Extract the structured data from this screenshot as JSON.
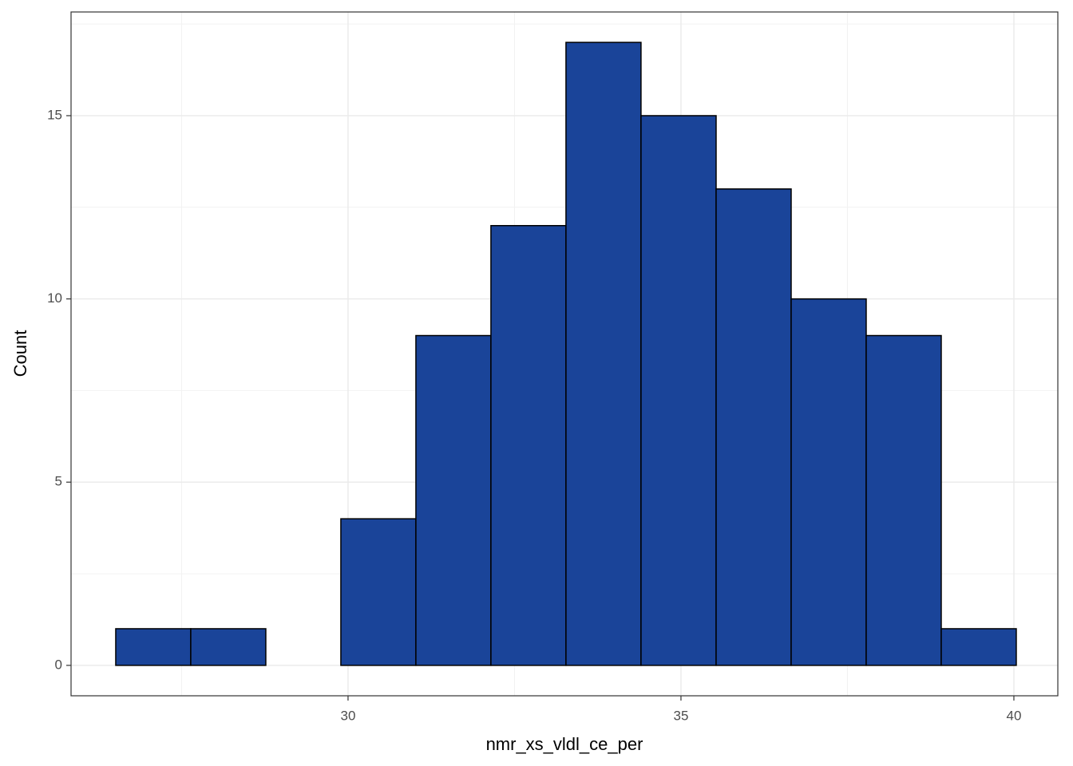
{
  "chart_data": {
    "type": "histogram",
    "x_label": "nmr_xs_vldl_ce_per",
    "y_label": "Count",
    "bins": [
      26.511,
      27.638,
      28.765,
      29.892,
      31.019,
      32.146,
      33.273,
      34.4,
      35.528,
      36.655,
      37.782,
      38.909,
      40.036
    ],
    "values": [
      1,
      1,
      0,
      4,
      9,
      12,
      17,
      15,
      13,
      10,
      9,
      1
    ],
    "color": "#1a4499",
    "xlim": [
      25.84,
      40.66
    ],
    "xticks": [
      30,
      35,
      40
    ],
    "ylim": [
      -0.83,
      17.83
    ],
    "yticks": [
      0,
      5,
      10,
      15
    ],
    "grid": true
  }
}
